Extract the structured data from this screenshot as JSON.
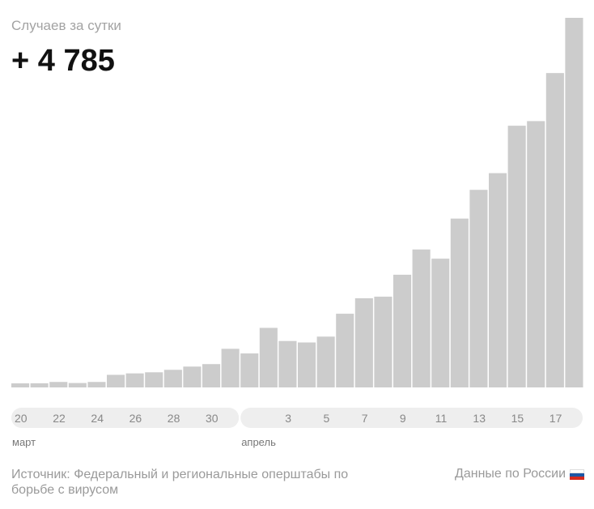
{
  "header": {
    "subtitle": "Случаев за сутки",
    "big_number": "+ 4 785"
  },
  "footer": {
    "source": "Источник: Федеральный и региональные оперштабы по борьбе с вирусом",
    "region": "Данные по России",
    "region_icon": "russia-flag-icon"
  },
  "colors": {
    "bar": "#cccccc",
    "pill": "#eeeeee",
    "tick_text": "#888888",
    "month_text": "#777777"
  },
  "chart_data": {
    "type": "bar",
    "x": [
      "2020-03-20",
      "2020-03-21",
      "2020-03-22",
      "2020-03-23",
      "2020-03-24",
      "2020-03-25",
      "2020-03-26",
      "2020-03-27",
      "2020-03-28",
      "2020-03-29",
      "2020-03-30",
      "2020-03-31",
      "2020-04-01",
      "2020-04-02",
      "2020-04-03",
      "2020-04-04",
      "2020-04-05",
      "2020-04-06",
      "2020-04-07",
      "2020-04-08",
      "2020-04-09",
      "2020-04-10",
      "2020-04-11",
      "2020-04-12",
      "2020-04-13",
      "2020-04-14",
      "2020-04-15",
      "2020-04-16",
      "2020-04-17",
      "2020-04-18"
    ],
    "values": [
      53,
      54,
      71,
      57,
      71,
      163,
      182,
      196,
      228,
      270,
      302,
      500,
      440,
      771,
      601,
      582,
      658,
      954,
      1154,
      1175,
      1459,
      1786,
      1667,
      2186,
      2558,
      2774,
      3388,
      3448,
      4070,
      4785
    ],
    "ylim": [
      0,
      4785
    ],
    "tick_labels": [
      {
        "index": 0,
        "label": "20"
      },
      {
        "index": 2,
        "label": "22"
      },
      {
        "index": 4,
        "label": "24"
      },
      {
        "index": 6,
        "label": "26"
      },
      {
        "index": 8,
        "label": "28"
      },
      {
        "index": 10,
        "label": "30"
      },
      {
        "index": 14,
        "label": "3"
      },
      {
        "index": 16,
        "label": "5"
      },
      {
        "index": 18,
        "label": "7"
      },
      {
        "index": 20,
        "label": "9"
      },
      {
        "index": 22,
        "label": "11"
      },
      {
        "index": 24,
        "label": "13"
      },
      {
        "index": 26,
        "label": "15"
      },
      {
        "index": 28,
        "label": "17"
      }
    ],
    "months": [
      {
        "start_index": 0,
        "end_index": 11,
        "label": "март"
      },
      {
        "start_index": 12,
        "end_index": 29,
        "label": "апрель"
      }
    ],
    "grid": false
  }
}
